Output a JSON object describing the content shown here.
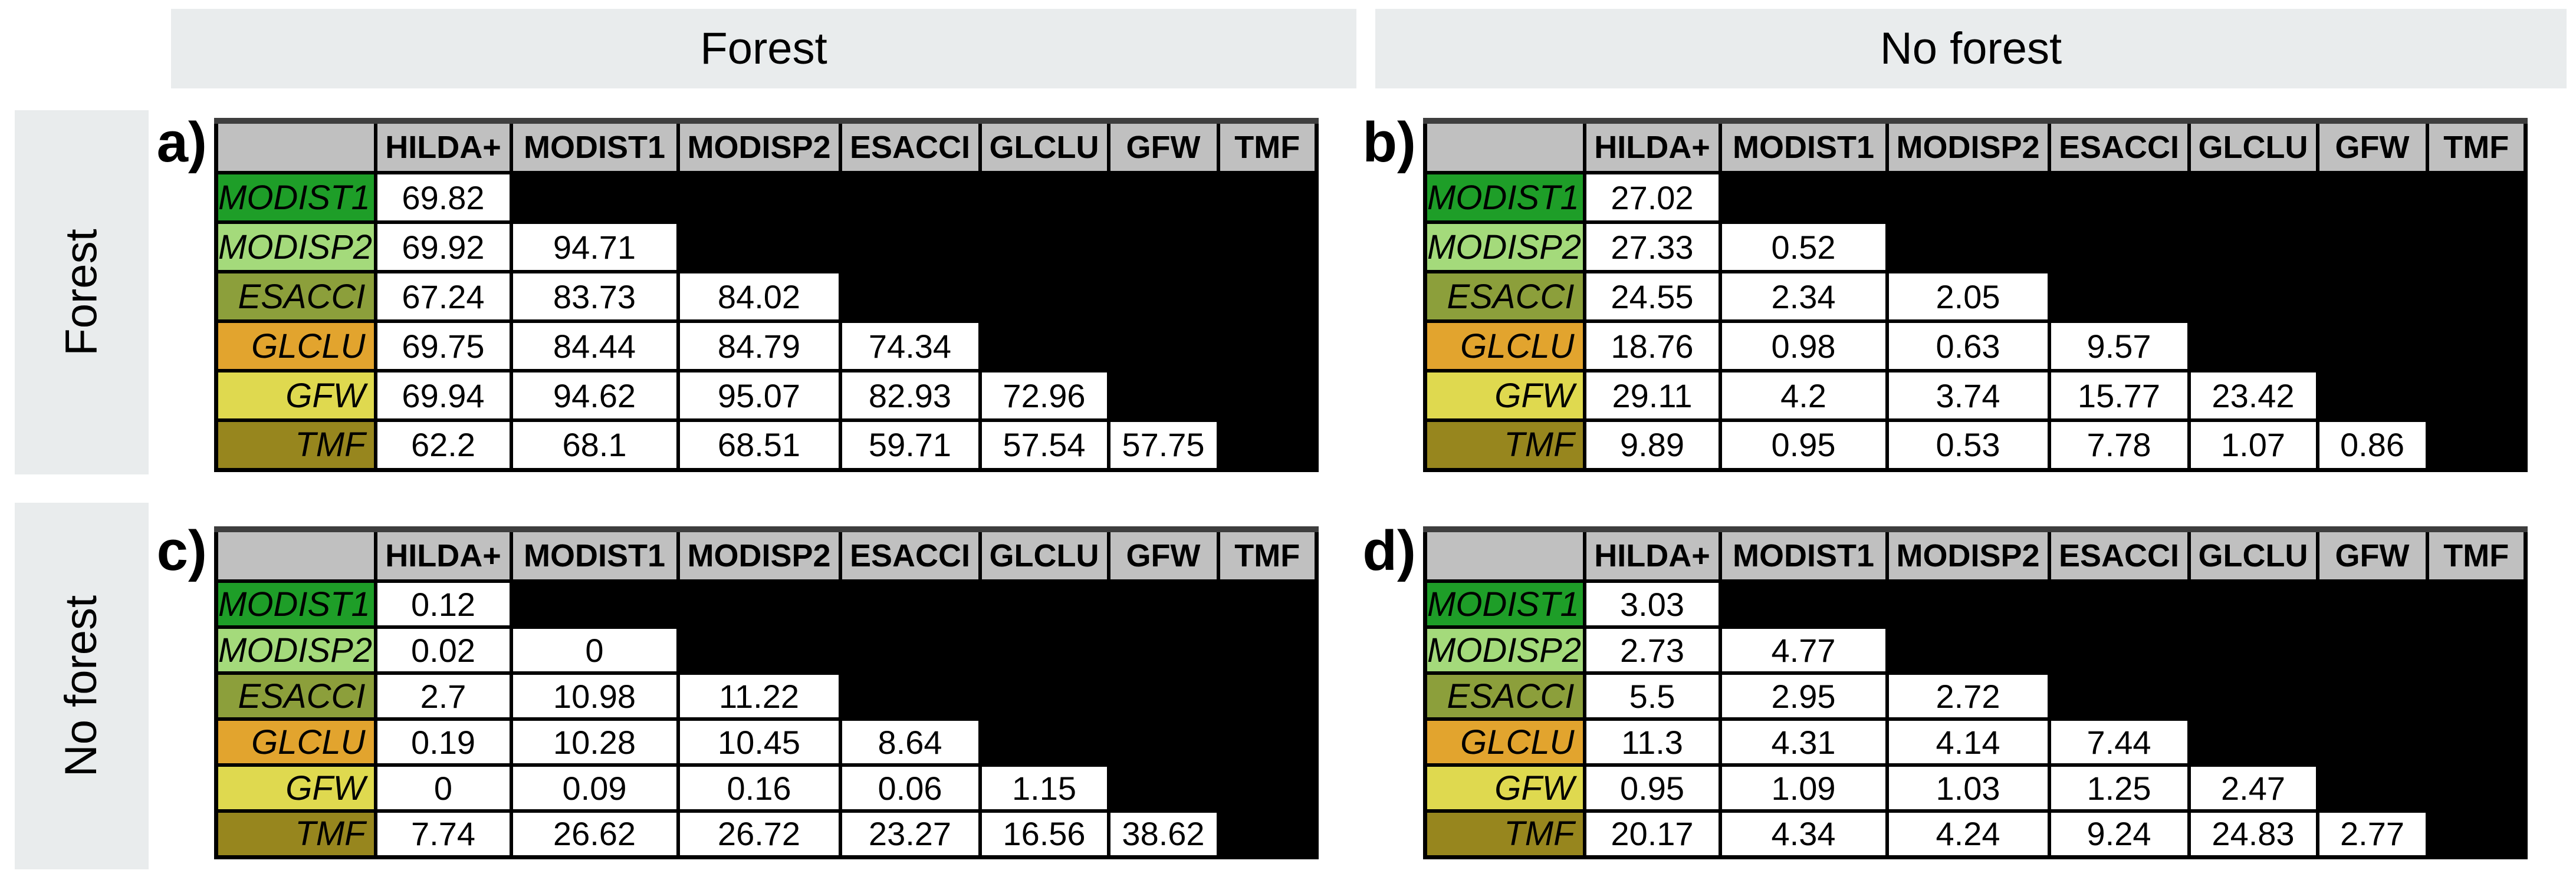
{
  "banners": {
    "top": [
      "Forest",
      "No forest"
    ],
    "side": [
      "Forest",
      "No forest"
    ]
  },
  "matrix_rows": [
    {
      "label": "MODIST1",
      "color": "#1E9E28"
    },
    {
      "label": "MODISP2",
      "color": "#A4DA7B"
    },
    {
      "label": "ESACCI",
      "color": "#8C9F3B"
    },
    {
      "label": "GLCLU",
      "color": "#E2A42E"
    },
    {
      "label": "GFW",
      "color": "#DFD94F"
    },
    {
      "label": "TMF",
      "color": "#97861E"
    }
  ],
  "colors": {
    "banner_bg": "#E9ECED",
    "header_cell_bg": "#C0C0C0",
    "table_top_border": "#3E3E3E",
    "empty_cell": "#000000",
    "value_cell_bg": "#FFFFFF",
    "text": "#000000"
  },
  "chart_data": [
    {
      "id": "a",
      "panel_label": "a)",
      "type": "table",
      "column_condition": "Forest",
      "row_condition": "Forest",
      "columns": [
        "HILDA+",
        "MODIST1",
        "MODISP2",
        "ESACCI",
        "GLCLU",
        "GFW",
        "TMF"
      ],
      "rows": [
        "MODIST1",
        "MODISP2",
        "ESACCI",
        "GLCLU",
        "GFW",
        "TMF"
      ],
      "values": [
        [
          69.82
        ],
        [
          69.92,
          94.71
        ],
        [
          67.24,
          83.73,
          84.02
        ],
        [
          69.75,
          84.44,
          84.79,
          74.34
        ],
        [
          69.94,
          94.62,
          95.07,
          82.93,
          72.96
        ],
        [
          62.2,
          68.1,
          68.51,
          59.71,
          57.54,
          57.75
        ]
      ]
    },
    {
      "id": "b",
      "panel_label": "b)",
      "type": "table",
      "column_condition": "No forest",
      "row_condition": "Forest",
      "columns": [
        "HILDA+",
        "MODIST1",
        "MODISP2",
        "ESACCI",
        "GLCLU",
        "GFW",
        "TMF"
      ],
      "rows": [
        "MODIST1",
        "MODISP2",
        "ESACCI",
        "GLCLU",
        "GFW",
        "TMF"
      ],
      "values": [
        [
          27.02
        ],
        [
          27.33,
          0.52
        ],
        [
          24.55,
          2.34,
          2.05
        ],
        [
          18.76,
          0.98,
          0.63,
          9.57
        ],
        [
          29.11,
          4.2,
          3.74,
          15.77,
          23.42
        ],
        [
          9.89,
          0.95,
          0.53,
          7.78,
          1.07,
          0.86
        ]
      ]
    },
    {
      "id": "c",
      "panel_label": "c)",
      "type": "table",
      "column_condition": "Forest",
      "row_condition": "No forest",
      "columns": [
        "HILDA+",
        "MODIST1",
        "MODISP2",
        "ESACCI",
        "GLCLU",
        "GFW",
        "TMF"
      ],
      "rows": [
        "MODIST1",
        "MODISP2",
        "ESACCI",
        "GLCLU",
        "GFW",
        "TMF"
      ],
      "values": [
        [
          0.12
        ],
        [
          0.02,
          0
        ],
        [
          2.7,
          10.98,
          11.22
        ],
        [
          0.19,
          10.28,
          10.45,
          8.64
        ],
        [
          0,
          0.09,
          0.16,
          0.06,
          1.15
        ],
        [
          7.74,
          26.62,
          26.72,
          23.27,
          16.56,
          38.62
        ]
      ]
    },
    {
      "id": "d",
      "panel_label": "d)",
      "type": "table",
      "column_condition": "No forest",
      "row_condition": "No forest",
      "columns": [
        "HILDA+",
        "MODIST1",
        "MODISP2",
        "ESACCI",
        "GLCLU",
        "GFW",
        "TMF"
      ],
      "rows": [
        "MODIST1",
        "MODISP2",
        "ESACCI",
        "GLCLU",
        "GFW",
        "TMF"
      ],
      "values": [
        [
          3.03
        ],
        [
          2.73,
          4.77
        ],
        [
          5.5,
          2.95,
          2.72
        ],
        [
          11.3,
          4.31,
          4.14,
          7.44
        ],
        [
          0.95,
          1.09,
          1.03,
          1.25,
          2.47
        ],
        [
          20.17,
          4.34,
          4.24,
          9.24,
          24.83,
          2.77
        ]
      ]
    }
  ]
}
